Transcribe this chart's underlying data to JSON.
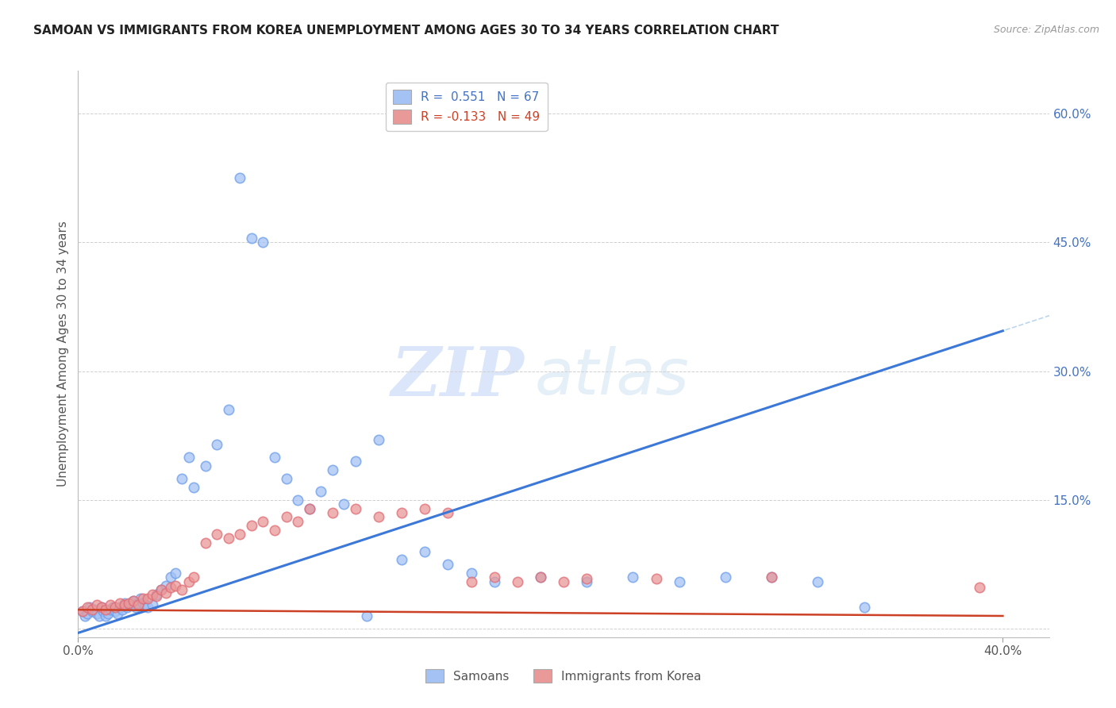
{
  "title": "SAMOAN VS IMMIGRANTS FROM KOREA UNEMPLOYMENT AMONG AGES 30 TO 34 YEARS CORRELATION CHART",
  "source": "Source: ZipAtlas.com",
  "ylabel": "Unemployment Among Ages 30 to 34 years",
  "xlim": [
    0.0,
    0.42
  ],
  "ylim": [
    -0.01,
    0.65
  ],
  "yticks_right": [
    0.0,
    0.15,
    0.3,
    0.45,
    0.6
  ],
  "yticklabels_right": [
    "",
    "15.0%",
    "30.0%",
    "45.0%",
    "60.0%"
  ],
  "blue_color": "#a4c2f4",
  "blue_edge": "#6d9eeb",
  "pink_color": "#ea9999",
  "pink_edge": "#e06c75",
  "blue_trend_color": "#3c78d8",
  "pink_trend_color": "#cc4125",
  "legend_blue_R": "R =  0.551",
  "legend_blue_N": "N = 67",
  "legend_pink_R": "R = -0.133",
  "legend_pink_N": "N = 49",
  "blue_slope": 0.88,
  "blue_intercept": -0.005,
  "pink_slope": -0.018,
  "pink_intercept": 0.022,
  "samoans_x": [
    0.002,
    0.003,
    0.004,
    0.005,
    0.006,
    0.007,
    0.008,
    0.009,
    0.01,
    0.011,
    0.012,
    0.013,
    0.014,
    0.015,
    0.016,
    0.017,
    0.018,
    0.019,
    0.02,
    0.021,
    0.022,
    0.023,
    0.024,
    0.025,
    0.026,
    0.027,
    0.028,
    0.029,
    0.03,
    0.032,
    0.034,
    0.036,
    0.038,
    0.04,
    0.042,
    0.045,
    0.048,
    0.05,
    0.055,
    0.06,
    0.065,
    0.07,
    0.075,
    0.08,
    0.085,
    0.09,
    0.095,
    0.1,
    0.105,
    0.11,
    0.115,
    0.12,
    0.125,
    0.13,
    0.14,
    0.15,
    0.16,
    0.17,
    0.18,
    0.2,
    0.22,
    0.24,
    0.26,
    0.28,
    0.3,
    0.32,
    0.34
  ],
  "samoans_y": [
    0.02,
    0.015,
    0.018,
    0.025,
    0.02,
    0.022,
    0.018,
    0.015,
    0.025,
    0.02,
    0.015,
    0.018,
    0.022,
    0.025,
    0.02,
    0.018,
    0.025,
    0.022,
    0.03,
    0.025,
    0.028,
    0.03,
    0.032,
    0.025,
    0.03,
    0.035,
    0.03,
    0.028,
    0.025,
    0.028,
    0.04,
    0.045,
    0.05,
    0.06,
    0.065,
    0.175,
    0.2,
    0.165,
    0.19,
    0.215,
    0.255,
    0.525,
    0.455,
    0.45,
    0.2,
    0.175,
    0.15,
    0.14,
    0.16,
    0.185,
    0.145,
    0.195,
    0.015,
    0.22,
    0.08,
    0.09,
    0.075,
    0.065,
    0.055,
    0.06,
    0.055,
    0.06,
    0.055,
    0.06,
    0.06,
    0.055,
    0.025
  ],
  "korea_x": [
    0.002,
    0.004,
    0.006,
    0.008,
    0.01,
    0.012,
    0.014,
    0.016,
    0.018,
    0.02,
    0.022,
    0.024,
    0.026,
    0.028,
    0.03,
    0.032,
    0.034,
    0.036,
    0.038,
    0.04,
    0.042,
    0.045,
    0.048,
    0.05,
    0.055,
    0.06,
    0.065,
    0.07,
    0.075,
    0.08,
    0.085,
    0.09,
    0.095,
    0.1,
    0.11,
    0.12,
    0.13,
    0.14,
    0.15,
    0.16,
    0.17,
    0.18,
    0.19,
    0.2,
    0.21,
    0.22,
    0.25,
    0.3,
    0.39
  ],
  "korea_y": [
    0.02,
    0.025,
    0.022,
    0.028,
    0.025,
    0.022,
    0.028,
    0.025,
    0.03,
    0.028,
    0.03,
    0.032,
    0.028,
    0.035,
    0.035,
    0.04,
    0.038,
    0.045,
    0.042,
    0.048,
    0.05,
    0.045,
    0.055,
    0.06,
    0.1,
    0.11,
    0.105,
    0.11,
    0.12,
    0.125,
    0.115,
    0.13,
    0.125,
    0.14,
    0.135,
    0.14,
    0.13,
    0.135,
    0.14,
    0.135,
    0.055,
    0.06,
    0.055,
    0.06,
    0.055,
    0.058,
    0.058,
    0.06,
    0.048
  ]
}
